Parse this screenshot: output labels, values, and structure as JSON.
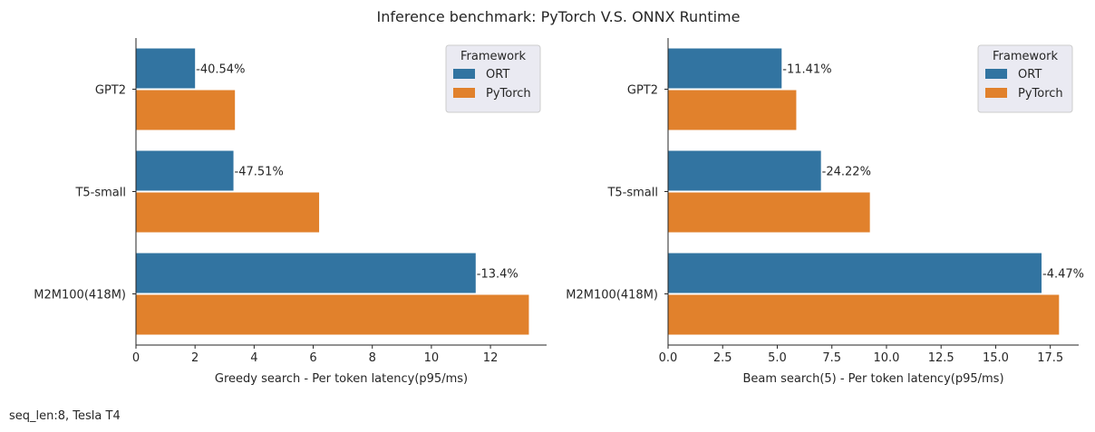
{
  "figure": {
    "title": "Inference benchmark: PyTorch V.S. ONNX Runtime",
    "caption": "seq_len:8, Tesla T4"
  },
  "colors": {
    "ORT": "#3274a1",
    "PyTorch": "#e1812c"
  },
  "chart_data": [
    {
      "type": "bar",
      "orientation": "horizontal",
      "categories": [
        "GPT2",
        "T5-small",
        "M2M100(418M)"
      ],
      "series": [
        {
          "name": "ORT",
          "values": [
            2.0,
            3.3,
            11.5
          ]
        },
        {
          "name": "PyTorch",
          "values": [
            3.35,
            6.2,
            13.3
          ]
        }
      ],
      "annotations": [
        "-40.54%",
        "-47.51%",
        "-13.4%"
      ],
      "xlabel": "Greedy search - Per token latency(p95/ms)",
      "xlim": [
        0,
        13.9
      ],
      "xticks": [
        0,
        2,
        4,
        6,
        8,
        10,
        12
      ],
      "xtick_labels": [
        "0",
        "2",
        "4",
        "6",
        "8",
        "10",
        "12"
      ],
      "legend": {
        "title": "Framework",
        "placement": "top-right"
      },
      "grid": false
    },
    {
      "type": "bar",
      "orientation": "horizontal",
      "categories": [
        "GPT2",
        "T5-small",
        "M2M100(418M)"
      ],
      "series": [
        {
          "name": "ORT",
          "values": [
            5.2,
            7.0,
            17.1
          ]
        },
        {
          "name": "PyTorch",
          "values": [
            5.87,
            9.24,
            17.9
          ]
        }
      ],
      "annotations": [
        "-11.41%",
        "-24.22%",
        "-4.47%"
      ],
      "xlabel": "Beam search(5) - Per token latency(p95/ms)",
      "xlim": [
        0,
        18.8
      ],
      "xticks": [
        0,
        2.5,
        5,
        7.5,
        10,
        12.5,
        15,
        17.5
      ],
      "xtick_labels": [
        "0.0",
        "2.5",
        "5.0",
        "7.5",
        "10.0",
        "12.5",
        "15.0",
        "17.5"
      ],
      "legend": {
        "title": "Framework",
        "placement": "top-right"
      },
      "grid": false
    }
  ]
}
